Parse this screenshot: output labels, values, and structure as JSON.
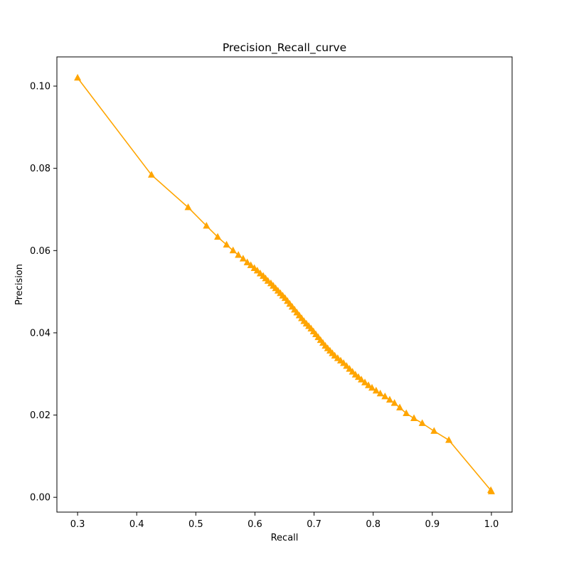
{
  "chart_data": {
    "type": "line",
    "title": "Precision_Recall_curve",
    "xlabel": "Recall",
    "ylabel": "Precision",
    "xlim": [
      0.265,
      1.035
    ],
    "ylim": [
      -0.0036,
      0.1071
    ],
    "xticks": [
      0.3,
      0.4,
      0.5,
      0.6,
      0.7,
      0.8,
      0.9,
      1.0
    ],
    "xtick_labels": [
      "0.3",
      "0.4",
      "0.5",
      "0.6",
      "0.7",
      "0.8",
      "0.9",
      "1.0"
    ],
    "yticks": [
      0.0,
      0.02,
      0.04,
      0.06,
      0.08,
      0.1
    ],
    "ytick_labels": [
      "0.00",
      "0.02",
      "0.04",
      "0.06",
      "0.08",
      "0.10"
    ],
    "grid": false,
    "color": "#ffa500",
    "marker": "triangle-up",
    "series": [
      {
        "name": "Precision_Recall_curve",
        "x": [
          0.3,
          0.425,
          0.487,
          0.518,
          0.537,
          0.552,
          0.563,
          0.572,
          0.58,
          0.587,
          0.593,
          0.599,
          0.604,
          0.609,
          0.614,
          0.618,
          0.622,
          0.627,
          0.631,
          0.635,
          0.639,
          0.643,
          0.647,
          0.651,
          0.655,
          0.659,
          0.663,
          0.667,
          0.671,
          0.675,
          0.679,
          0.683,
          0.687,
          0.691,
          0.695,
          0.699,
          0.703,
          0.707,
          0.711,
          0.715,
          0.719,
          0.723,
          0.727,
          0.731,
          0.735,
          0.74,
          0.745,
          0.75,
          0.755,
          0.76,
          0.765,
          0.77,
          0.775,
          0.78,
          0.786,
          0.792,
          0.798,
          0.805,
          0.812,
          0.82,
          0.828,
          0.836,
          0.845,
          0.856,
          0.869,
          0.883,
          0.903,
          0.928,
          0.999,
          1.0
        ],
        "y": [
          0.102,
          0.0784,
          0.0705,
          0.066,
          0.0633,
          0.0614,
          0.06,
          0.0589,
          0.058,
          0.0571,
          0.0564,
          0.0557,
          0.0551,
          0.0544,
          0.0538,
          0.0532,
          0.0526,
          0.052,
          0.0514,
          0.0508,
          0.0502,
          0.0496,
          0.049,
          0.0484,
          0.0477,
          0.047,
          0.0463,
          0.0456,
          0.0449,
          0.0442,
          0.0435,
          0.0428,
          0.0422,
          0.0416,
          0.041,
          0.0403,
          0.0396,
          0.0389,
          0.0382,
          0.0375,
          0.0368,
          0.0362,
          0.0356,
          0.035,
          0.0344,
          0.0338,
          0.0332,
          0.0326,
          0.0319,
          0.0312,
          0.0305,
          0.0298,
          0.0292,
          0.0286,
          0.0279,
          0.0272,
          0.0266,
          0.0259,
          0.0252,
          0.0245,
          0.0237,
          0.0229,
          0.0218,
          0.0204,
          0.0192,
          0.018,
          0.0161,
          0.0139,
          0.0017,
          0.0014
        ]
      }
    ]
  }
}
